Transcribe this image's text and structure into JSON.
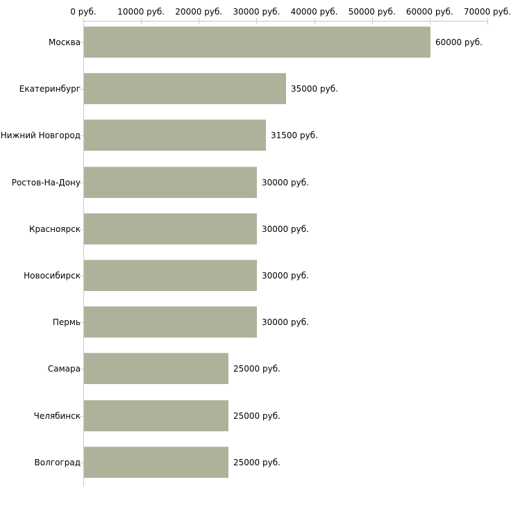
{
  "chart_data": {
    "type": "bar",
    "orientation": "horizontal",
    "title": "",
    "categories": [
      "Москва",
      "Екатеринбург",
      "Нижний Новгород",
      "Ростов-На-Дону",
      "Красноярск",
      "Новосибирск",
      "Пермь",
      "Самара",
      "Челябинск",
      "Волгоград"
    ],
    "values": [
      60000,
      35000,
      31500,
      30000,
      30000,
      30000,
      30000,
      25000,
      25000,
      25000
    ],
    "value_labels": [
      "60000 руб.",
      "35000 руб.",
      "31500 руб.",
      "30000 руб.",
      "30000 руб.",
      "30000 руб.",
      "30000 руб.",
      "25000 руб.",
      "25000 руб.",
      "25000 руб."
    ],
    "x_tick_labels": [
      "0 руб.",
      "10000 руб.",
      "20000 руб.",
      "30000 руб.",
      "40000 руб.",
      "50000 руб.",
      "60000 руб.",
      "70000 руб."
    ],
    "x_tick_values": [
      0,
      10000,
      20000,
      30000,
      40000,
      50000,
      60000,
      70000
    ],
    "xlim": [
      0,
      70000
    ],
    "unit_suffix": " руб.",
    "xlabel": "",
    "ylabel": "",
    "grid": "off",
    "legend": "none",
    "bar_color": "#adb39b",
    "axis_line_color": "#c6c6c6",
    "tick_color": "#cdd0ad",
    "text_color": "#000000",
    "background_color": "#ffffff"
  }
}
